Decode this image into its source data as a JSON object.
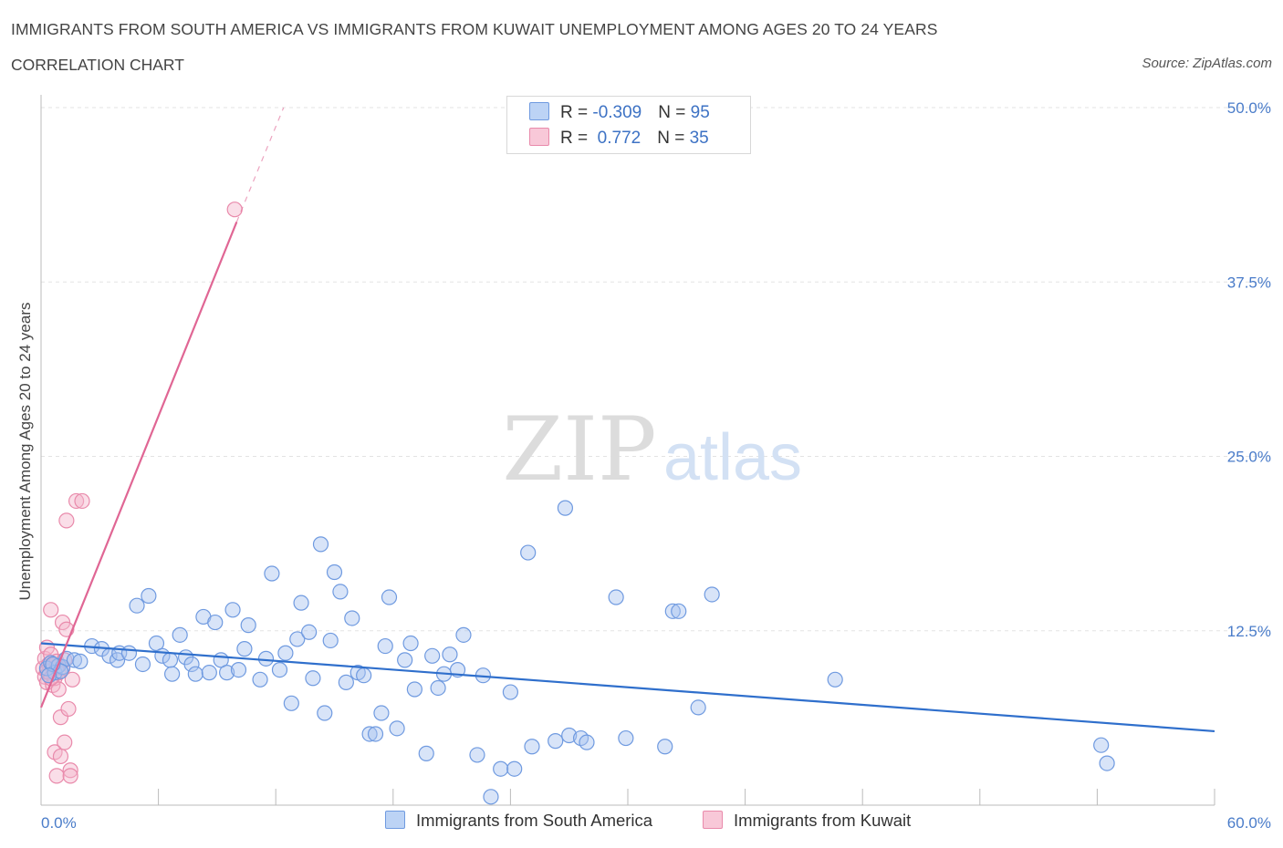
{
  "header": {
    "title": "IMMIGRANTS FROM SOUTH AMERICA VS IMMIGRANTS FROM KUWAIT UNEMPLOYMENT AMONG AGES 20 TO 24 YEARS",
    "subtitle": "CORRELATION CHART",
    "source": "Source: ZipAtlas.com"
  },
  "watermark": {
    "zip": "ZIP",
    "atlas": "atlas"
  },
  "legend": {
    "rows": [
      {
        "r_label": "R = ",
        "r_value": "-0.309",
        "n_label": "N = ",
        "n_value": "95"
      },
      {
        "r_label": "R = ",
        "r_value": " 0.772",
        "n_label": "N = ",
        "n_value": "35"
      }
    ]
  },
  "bottom_legend": {
    "south_america": "Immigrants from South America",
    "kuwait": "Immigrants from Kuwait"
  },
  "colors": {
    "south_america_fill": "#a9c4f0",
    "south_america_stroke": "#6f9ae0",
    "south_america_line": "#2f6fcc",
    "kuwait_fill": "#f5b6cb",
    "kuwait_stroke": "#e98aab",
    "kuwait_line": "#e06694"
  },
  "chart_data": {
    "type": "scatter",
    "title": "IMMIGRANTS FROM SOUTH AMERICA VS IMMIGRANTS FROM KUWAIT UNEMPLOYMENT AMONG AGES 20 TO 24 YEARS",
    "xlabel": "",
    "ylabel": "Unemployment Among Ages 20 to 24 years",
    "xlim": [
      0,
      60
    ],
    "ylim": [
      0,
      50
    ],
    "x_tick_labels": [
      "0.0%",
      "60.0%"
    ],
    "y_ticks": [
      12.5,
      25.0,
      37.5,
      50.0
    ],
    "y_tick_labels": [
      "12.5%",
      "25.0%",
      "37.5%",
      "50.0%"
    ],
    "grid": true,
    "series": [
      {
        "name": "Immigrants from South America",
        "R": -0.309,
        "N": 95,
        "trend": {
          "x": [
            0,
            60
          ],
          "y": [
            11.6,
            5.3
          ]
        },
        "points": [
          [
            0.3,
            9.8
          ],
          [
            0.5,
            10.2
          ],
          [
            0.7,
            9.5
          ],
          [
            0.9,
            10.0
          ],
          [
            1.1,
            9.9
          ],
          [
            1.3,
            10.5
          ],
          [
            1.7,
            10.4
          ],
          [
            2.0,
            10.3
          ],
          [
            2.6,
            11.4
          ],
          [
            3.1,
            11.2
          ],
          [
            3.5,
            10.7
          ],
          [
            3.9,
            10.4
          ],
          [
            4.0,
            10.9
          ],
          [
            4.5,
            10.9
          ],
          [
            4.9,
            14.3
          ],
          [
            5.2,
            10.1
          ],
          [
            5.5,
            15.0
          ],
          [
            5.9,
            11.6
          ],
          [
            6.2,
            10.7
          ],
          [
            6.6,
            10.4
          ],
          [
            6.7,
            9.4
          ],
          [
            7.1,
            12.2
          ],
          [
            7.4,
            10.6
          ],
          [
            7.7,
            10.1
          ],
          [
            7.9,
            9.4
          ],
          [
            8.3,
            13.5
          ],
          [
            8.6,
            9.5
          ],
          [
            8.9,
            13.1
          ],
          [
            9.2,
            10.4
          ],
          [
            9.5,
            9.5
          ],
          [
            9.8,
            14.0
          ],
          [
            10.1,
            9.7
          ],
          [
            10.4,
            11.2
          ],
          [
            10.6,
            12.9
          ],
          [
            11.2,
            9.0
          ],
          [
            11.5,
            10.5
          ],
          [
            11.8,
            16.6
          ],
          [
            12.2,
            9.7
          ],
          [
            12.5,
            10.9
          ],
          [
            12.8,
            7.3
          ],
          [
            13.1,
            11.9
          ],
          [
            13.3,
            14.5
          ],
          [
            13.7,
            12.4
          ],
          [
            13.9,
            9.1
          ],
          [
            14.3,
            18.7
          ],
          [
            14.5,
            6.6
          ],
          [
            14.8,
            11.8
          ],
          [
            15.0,
            16.7
          ],
          [
            15.3,
            15.3
          ],
          [
            15.6,
            8.8
          ],
          [
            15.9,
            13.4
          ],
          [
            16.2,
            9.5
          ],
          [
            16.5,
            9.3
          ],
          [
            16.8,
            5.1
          ],
          [
            17.1,
            5.1
          ],
          [
            17.4,
            6.6
          ],
          [
            17.6,
            11.4
          ],
          [
            17.8,
            14.9
          ],
          [
            18.2,
            5.5
          ],
          [
            18.6,
            10.4
          ],
          [
            18.9,
            11.6
          ],
          [
            19.1,
            8.3
          ],
          [
            19.7,
            3.7
          ],
          [
            20.0,
            10.7
          ],
          [
            20.3,
            8.4
          ],
          [
            20.6,
            9.4
          ],
          [
            20.9,
            10.8
          ],
          [
            21.3,
            9.7
          ],
          [
            21.6,
            12.2
          ],
          [
            22.3,
            3.6
          ],
          [
            22.6,
            9.3
          ],
          [
            23.0,
            0.6
          ],
          [
            23.5,
            2.6
          ],
          [
            24.0,
            8.1
          ],
          [
            24.2,
            2.6
          ],
          [
            24.9,
            18.1
          ],
          [
            25.1,
            4.2
          ],
          [
            26.3,
            4.6
          ],
          [
            26.8,
            21.3
          ],
          [
            27.0,
            5.0
          ],
          [
            27.6,
            4.8
          ],
          [
            27.9,
            4.5
          ],
          [
            29.4,
            14.9
          ],
          [
            29.9,
            4.8
          ],
          [
            31.9,
            4.2
          ],
          [
            32.3,
            13.9
          ],
          [
            32.6,
            13.9
          ],
          [
            33.6,
            7.0
          ],
          [
            34.3,
            15.1
          ],
          [
            40.6,
            9.0
          ],
          [
            54.2,
            4.3
          ],
          [
            54.5,
            3.0
          ],
          [
            1.0,
            9.6
          ],
          [
            0.6,
            10.1
          ],
          [
            0.4,
            9.3
          ]
        ]
      },
      {
        "name": "Immigrants from Kuwait",
        "R": 0.772,
        "N": 35,
        "trend": {
          "x": [
            0,
            10.0
          ],
          "y": [
            7.0,
            41.8
          ]
        },
        "trend_extension": {
          "x": [
            10.0,
            12.4
          ],
          "y": [
            41.8,
            50.0
          ]
        },
        "points": [
          [
            0.1,
            9.8
          ],
          [
            0.2,
            10.5
          ],
          [
            0.2,
            9.2
          ],
          [
            0.3,
            11.3
          ],
          [
            0.3,
            8.8
          ],
          [
            0.4,
            10.1
          ],
          [
            0.4,
            9.5
          ],
          [
            0.5,
            10.8
          ],
          [
            0.5,
            14.0
          ],
          [
            0.6,
            8.6
          ],
          [
            0.6,
            10.0
          ],
          [
            0.7,
            9.1
          ],
          [
            0.7,
            3.8
          ],
          [
            0.8,
            10.3
          ],
          [
            0.8,
            2.1
          ],
          [
            0.9,
            9.5
          ],
          [
            0.9,
            8.3
          ],
          [
            1.0,
            6.3
          ],
          [
            1.0,
            3.5
          ],
          [
            1.1,
            13.1
          ],
          [
            1.1,
            9.8
          ],
          [
            1.2,
            10.4
          ],
          [
            1.2,
            4.5
          ],
          [
            1.3,
            12.6
          ],
          [
            1.3,
            20.4
          ],
          [
            1.4,
            6.9
          ],
          [
            1.5,
            2.5
          ],
          [
            1.5,
            2.1
          ],
          [
            1.6,
            9.0
          ],
          [
            1.8,
            21.8
          ],
          [
            2.1,
            21.8
          ],
          [
            9.9,
            42.7
          ],
          [
            0.3,
            9.6
          ],
          [
            0.5,
            9.1
          ],
          [
            0.8,
            9.9
          ]
        ]
      }
    ]
  }
}
